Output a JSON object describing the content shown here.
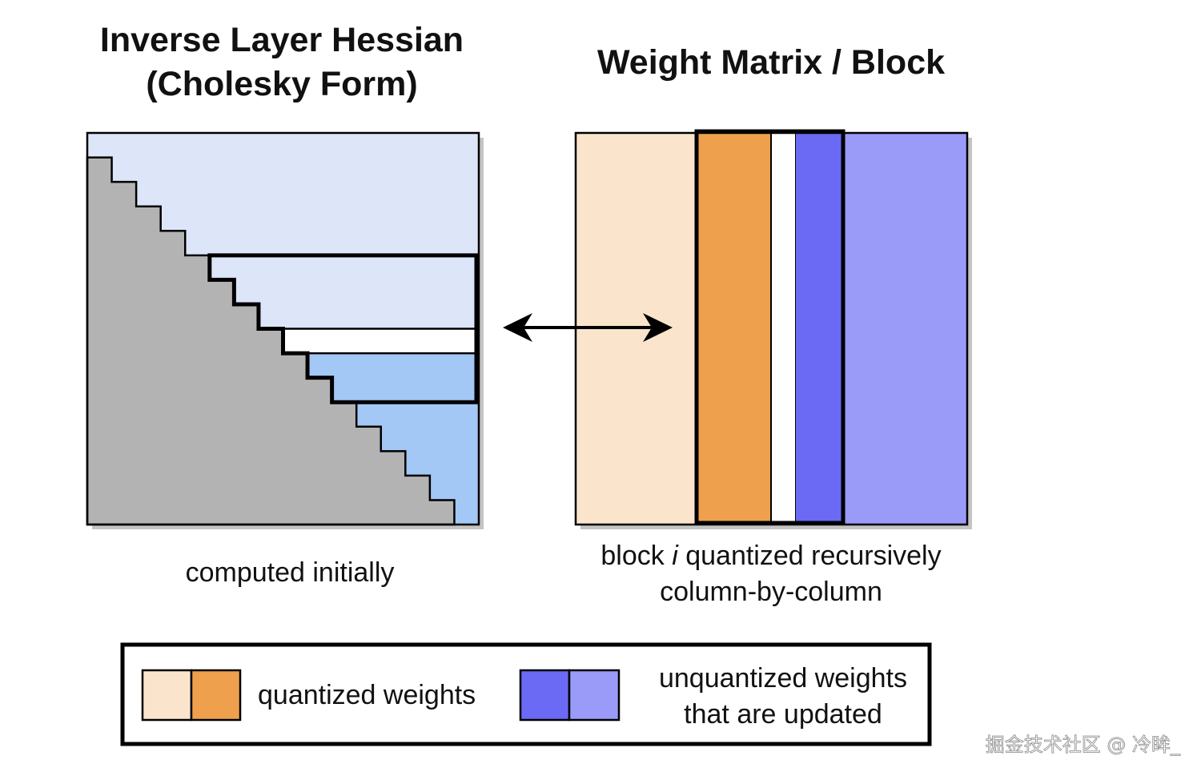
{
  "left_panel": {
    "title_line1": "Inverse Layer Hessian",
    "title_line2": "(Cholesky Form)",
    "caption": "computed initially"
  },
  "right_panel": {
    "title": "Weight Matrix / Block",
    "caption_line1_pre": "block ",
    "caption_line1_italic": "i",
    "caption_line1_post": " quantized recursively",
    "caption_line2": "column-by-column"
  },
  "legend": {
    "quantized_label": "quantized weights",
    "unquantized_label_line1": "unquantized weights",
    "unquantized_label_line2": "that are updated"
  },
  "watermark": "掘金技术社区 @ 冷眸_",
  "colors": {
    "hessian_light_blue": "#dce6f8",
    "hessian_mid_blue": "#a4c8f5",
    "hessian_gray": "#b3b3b3",
    "quantized_light": "#fae5cc",
    "quantized_dark": "#efa04d",
    "unquantized_dark": "#6a6af5",
    "unquantized_light": "#9a9af8"
  }
}
